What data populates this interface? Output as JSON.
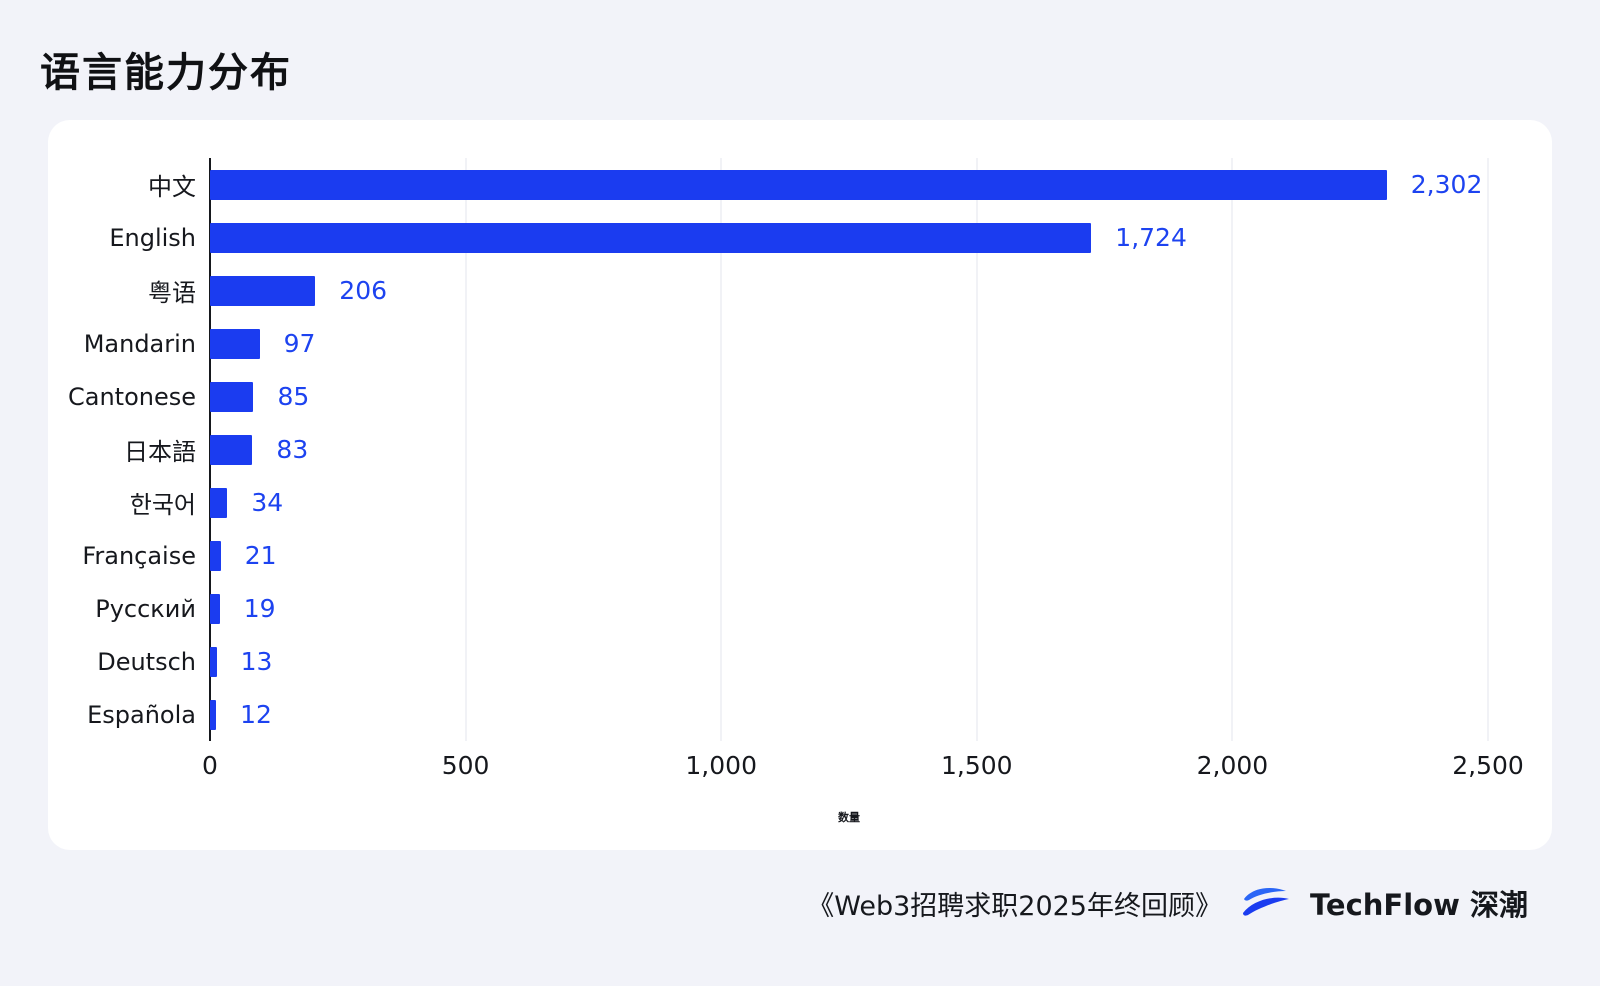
{
  "page": {
    "title": "语言能力分布"
  },
  "chart_data": {
    "type": "bar",
    "orientation": "horizontal",
    "title": "语言能力分布",
    "categories": [
      "中文",
      "English",
      "粤语",
      "Mandarin",
      "Cantonese",
      "日本語",
      "한국어",
      "Française",
      "Русский",
      "Deutsch",
      "Española"
    ],
    "values": [
      2302,
      1724,
      206,
      97,
      85,
      83,
      34,
      21,
      19,
      13,
      12
    ],
    "value_labels": [
      "2,302",
      "1,724",
      "206",
      "97",
      "85",
      "83",
      "34",
      "21",
      "19",
      "13",
      "12"
    ],
    "xlabel": "数量",
    "xlim": [
      0,
      2500
    ],
    "x_ticks": [
      0,
      500,
      1000,
      1500,
      2000,
      2500
    ],
    "x_tick_labels": [
      "0",
      "500",
      "1,000",
      "1,500",
      "2,000",
      "2,500"
    ],
    "grid": true,
    "legend": false,
    "bar_color": "#1b3cf0",
    "value_color": "#1d43f0"
  },
  "footer": {
    "source": "《Web3招聘求职2025年终回顾》",
    "brand": "TechFlow 深潮"
  }
}
